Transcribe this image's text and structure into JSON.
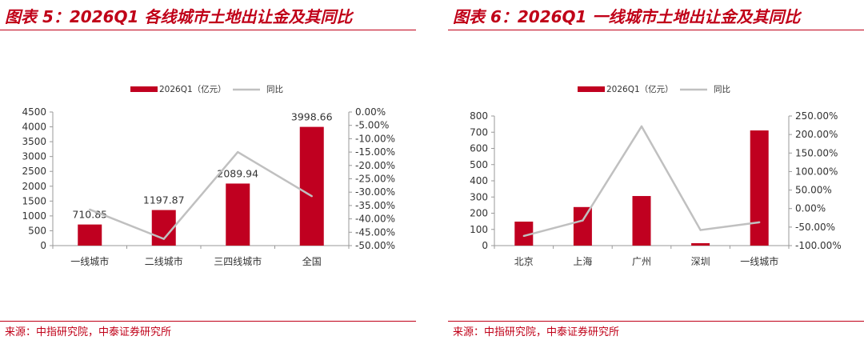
{
  "colors": {
    "accent": "#c00018",
    "bar": "#c00020",
    "line": "#c0c0c0"
  },
  "charts": [
    {
      "title": "图表 5：2026Q1 各线城市土地出让金及其同比",
      "source": "来源：中指研究院，中泰证券研究所",
      "chart_data": {
        "type": "bar",
        "categories": [
          "一线城市",
          "二线城市",
          "三四线城市",
          "全国"
        ],
        "series": [
          {
            "name": "2026Q1（亿元）",
            "type": "bar",
            "axis": "left",
            "values": [
              710.85,
              1197.87,
              2089.94,
              3998.66
            ]
          },
          {
            "name": "同比",
            "type": "line",
            "axis": "right",
            "values": [
              -36.5,
              -47.5,
              -15.0,
              -31.5
            ]
          }
        ],
        "data_labels": [
          "710.85",
          "1197.87",
          "2089.94",
          "3998.66"
        ],
        "y_left": {
          "ticks": [
            "0",
            "500",
            "1000",
            "1500",
            "2000",
            "2500",
            "3000",
            "3500",
            "4000",
            "4500"
          ],
          "min": 0,
          "max": 4500
        },
        "y_right": {
          "ticks": [
            "-50.00%",
            "-45.00%",
            "-40.00%",
            "-35.00%",
            "-30.00%",
            "-25.00%",
            "-20.00%",
            "-15.00%",
            "-10.00%",
            "-5.00%",
            "0.00%"
          ],
          "min": -50,
          "max": 0
        },
        "legend": "top",
        "grid": false
      }
    },
    {
      "title": "图表 6：2026Q1 一线城市土地出让金及其同比",
      "source": "来源：中指研究院，中泰证券研究所",
      "chart_data": {
        "type": "bar",
        "categories": [
          "北京",
          "上海",
          "广州",
          "深圳",
          "一线城市"
        ],
        "series": [
          {
            "name": "2026Q1（亿元）",
            "type": "bar",
            "axis": "left",
            "values": [
              148,
              238,
              306,
              15,
              710.85
            ]
          },
          {
            "name": "同比",
            "type": "line",
            "axis": "right",
            "values": [
              -74,
              -32,
              222,
              -58,
              -37
            ]
          }
        ],
        "data_labels": [],
        "y_left": {
          "ticks": [
            "0",
            "100",
            "200",
            "300",
            "400",
            "500",
            "600",
            "700",
            "800"
          ],
          "min": 0,
          "max": 800
        },
        "y_right": {
          "ticks": [
            "-100.00%",
            "-50.00%",
            "0.00%",
            "50.00%",
            "100.00%",
            "150.00%",
            "200.00%",
            "250.00%"
          ],
          "min": -100,
          "max": 250
        },
        "legend": "top",
        "grid": false
      }
    }
  ]
}
